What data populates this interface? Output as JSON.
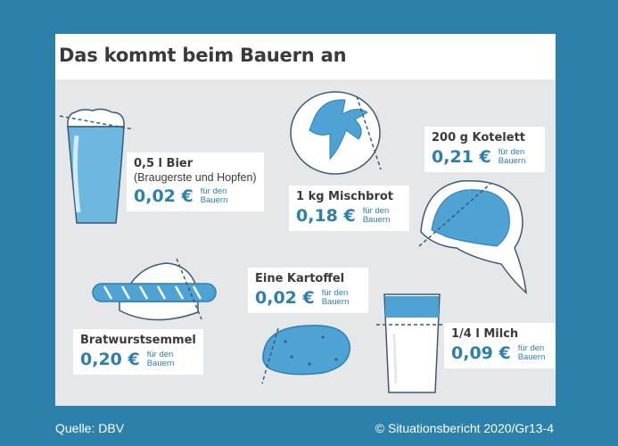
{
  "title": "Das kommt beim Bauern an",
  "note": "für den Bauern",
  "items": [
    {
      "name": "0,5 l Bier",
      "sub": "(Braugerste und Hopfen)",
      "price": "0,02 €",
      "icon": "beer-glass-icon"
    },
    {
      "name": "1 kg Mischbrot",
      "price": "0,18 €",
      "icon": "bread-loaf-icon"
    },
    {
      "name": "200 g Kotelett",
      "price": "0,21 €",
      "icon": "pork-chop-icon"
    },
    {
      "name": "Bratwurstsemmel",
      "price": "0,20 €",
      "icon": "sausage-bun-icon"
    },
    {
      "name": "Eine Kartoffel",
      "price": "0,02 €",
      "icon": "potato-icon"
    },
    {
      "name": "1/4 l Milch",
      "price": "0,09 €",
      "icon": "milk-glass-icon"
    }
  ],
  "footer": {
    "source": "Quelle: DBV",
    "copyright": "© Situationsbericht 2020/Gr13-4"
  },
  "colors": {
    "background": "#2c81ab",
    "accent": "#2d7fb0",
    "light_blue": "#6cb8e0",
    "card": "#e6e7e8"
  }
}
